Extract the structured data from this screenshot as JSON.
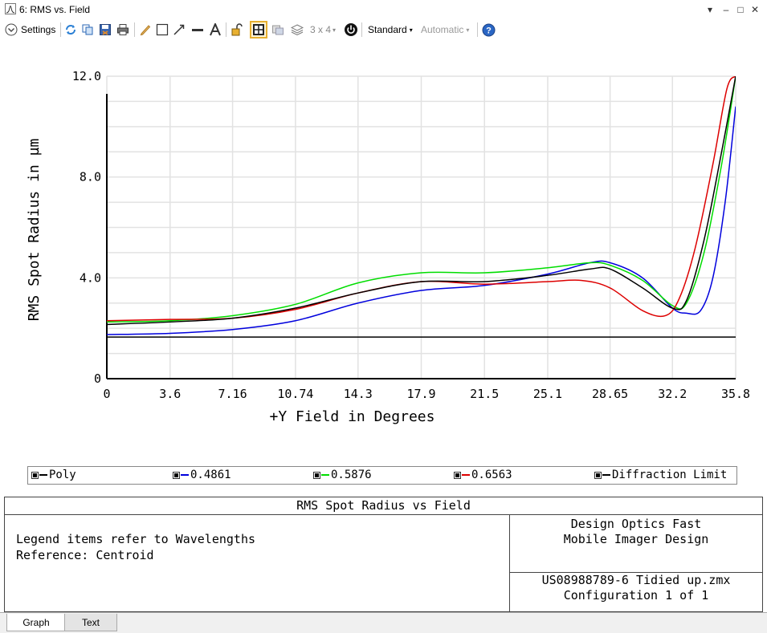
{
  "window": {
    "title": "6: RMS vs. Field",
    "controls": [
      "chevron-down-icon",
      "minimize-icon",
      "maximize-icon",
      "close-icon"
    ]
  },
  "toolbar": {
    "settings_label": "Settings",
    "layout_label": "3 x 4",
    "standard_label": "Standard",
    "automatic_label": "Automatic"
  },
  "chart_data": {
    "type": "line",
    "xlabel": "+Y Field in Degrees",
    "ylabel": "RMS Spot Radius in µm",
    "xlim": [
      0,
      35.8
    ],
    "ylim": [
      0,
      12.0
    ],
    "xticks": [
      "0",
      "3.6",
      "7.16",
      "10.74",
      "14.3",
      "17.9",
      "21.5",
      "25.1",
      "28.65",
      "32.2",
      "35.8"
    ],
    "yticks": [
      "0",
      "4.0",
      "8.0",
      "12.0"
    ],
    "grid": true,
    "legend_position": "bottom",
    "series": [
      {
        "name": "Poly",
        "color": "#000000",
        "x": [
          0,
          3.6,
          7.16,
          10.74,
          14.3,
          17.9,
          21.5,
          25.1,
          27.5,
          28.65,
          30.5,
          32.2,
          33.0,
          34.0,
          35.0,
          35.8
        ],
        "y": [
          2.15,
          2.25,
          2.4,
          2.8,
          3.4,
          3.85,
          3.85,
          4.1,
          4.35,
          4.35,
          3.6,
          2.8,
          3.1,
          5.5,
          9.0,
          12.0
        ]
      },
      {
        "name": "0.4861",
        "color": "#0000dd",
        "x": [
          0,
          3.6,
          7.16,
          10.74,
          14.3,
          17.9,
          21.5,
          25.1,
          27.5,
          28.65,
          30.5,
          32.2,
          33.0,
          33.8,
          34.5,
          35.2,
          35.8
        ],
        "y": [
          1.75,
          1.8,
          1.95,
          2.3,
          3.0,
          3.5,
          3.7,
          4.15,
          4.6,
          4.6,
          4.0,
          2.8,
          2.6,
          2.7,
          4.0,
          7.0,
          10.8
        ]
      },
      {
        "name": "0.5876",
        "color": "#00dd00",
        "x": [
          0,
          3.6,
          7.16,
          10.74,
          14.3,
          17.9,
          21.5,
          25.1,
          27.5,
          28.65,
          30.5,
          32.2,
          33.0,
          34.0,
          35.0,
          35.8
        ],
        "y": [
          2.25,
          2.3,
          2.5,
          2.95,
          3.8,
          4.2,
          4.2,
          4.4,
          4.6,
          4.5,
          3.9,
          2.9,
          3.0,
          5.0,
          8.5,
          12.0
        ]
      },
      {
        "name": "0.6563",
        "color": "#dd0000",
        "x": [
          0,
          3.6,
          7.16,
          10.74,
          14.3,
          17.9,
          21.5,
          25.1,
          27.0,
          28.65,
          30.5,
          31.8,
          32.6,
          33.5,
          34.5,
          35.3,
          35.8
        ],
        "y": [
          2.3,
          2.35,
          2.4,
          2.75,
          3.4,
          3.85,
          3.75,
          3.85,
          3.9,
          3.6,
          2.7,
          2.5,
          3.2,
          5.2,
          8.5,
          11.5,
          12.0
        ]
      },
      {
        "name": "Diffraction Limit",
        "color": "#000000",
        "x": [
          0,
          35.8
        ],
        "y": [
          1.65,
          1.65
        ]
      }
    ]
  },
  "info": {
    "header": "RMS Spot Radius vs Field",
    "left_line1": "Legend items refer to Wavelengths",
    "left_line2": "Reference: Centroid",
    "right_line1": "Design Optics Fast",
    "right_line2": "Mobile Imager Design",
    "right_line3": "US08988789-6 Tidied up.zmx",
    "right_line4": "Configuration 1 of 1"
  },
  "tabs": [
    {
      "label": "Graph"
    },
    {
      "label": "Text"
    }
  ]
}
